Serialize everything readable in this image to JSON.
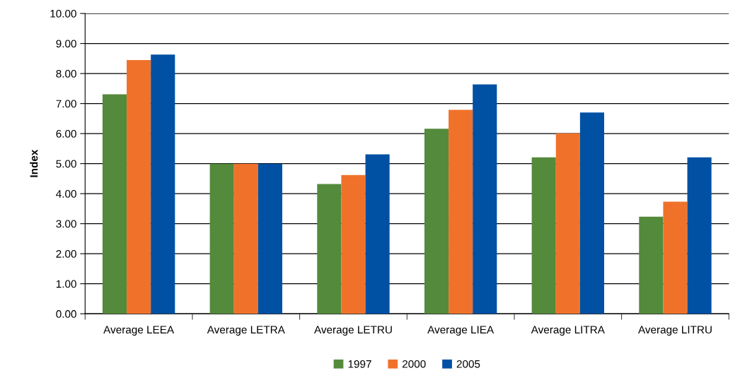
{
  "chart_data": {
    "type": "bar",
    "ylabel": "Index",
    "categories": [
      "Average LEEA",
      "Average LETRA",
      "Average LETRU",
      "Average LIEA",
      "Average LITRA",
      "Average LITRU"
    ],
    "series": [
      {
        "name": "1997",
        "color": "#538a3b",
        "values": [
          7.31,
          5.0,
          4.32,
          6.16,
          5.21,
          3.23
        ]
      },
      {
        "name": "2000",
        "color": "#f0722a",
        "values": [
          8.45,
          5.0,
          4.62,
          6.79,
          6.01,
          3.73
        ]
      },
      {
        "name": "2005",
        "color": "#0050a4",
        "values": [
          8.63,
          5.0,
          5.31,
          7.64,
          6.7,
          5.21
        ]
      }
    ],
    "ylim": [
      0,
      10
    ],
    "yticks": [
      {
        "value": 0,
        "label": "0.00"
      },
      {
        "value": 1,
        "label": "1.00"
      },
      {
        "value": 2,
        "label": "2.00"
      },
      {
        "value": 3,
        "label": "3.00"
      },
      {
        "value": 4,
        "label": "4.00"
      },
      {
        "value": 5,
        "label": "5.00"
      },
      {
        "value": 6,
        "label": "6.00"
      },
      {
        "value": 7,
        "label": "7.00"
      },
      {
        "value": 8,
        "label": "8.00"
      },
      {
        "value": 9,
        "label": "9.00"
      },
      {
        "value": 10,
        "label": "10.00"
      }
    ],
    "grid": "y",
    "legend": "bottom"
  }
}
